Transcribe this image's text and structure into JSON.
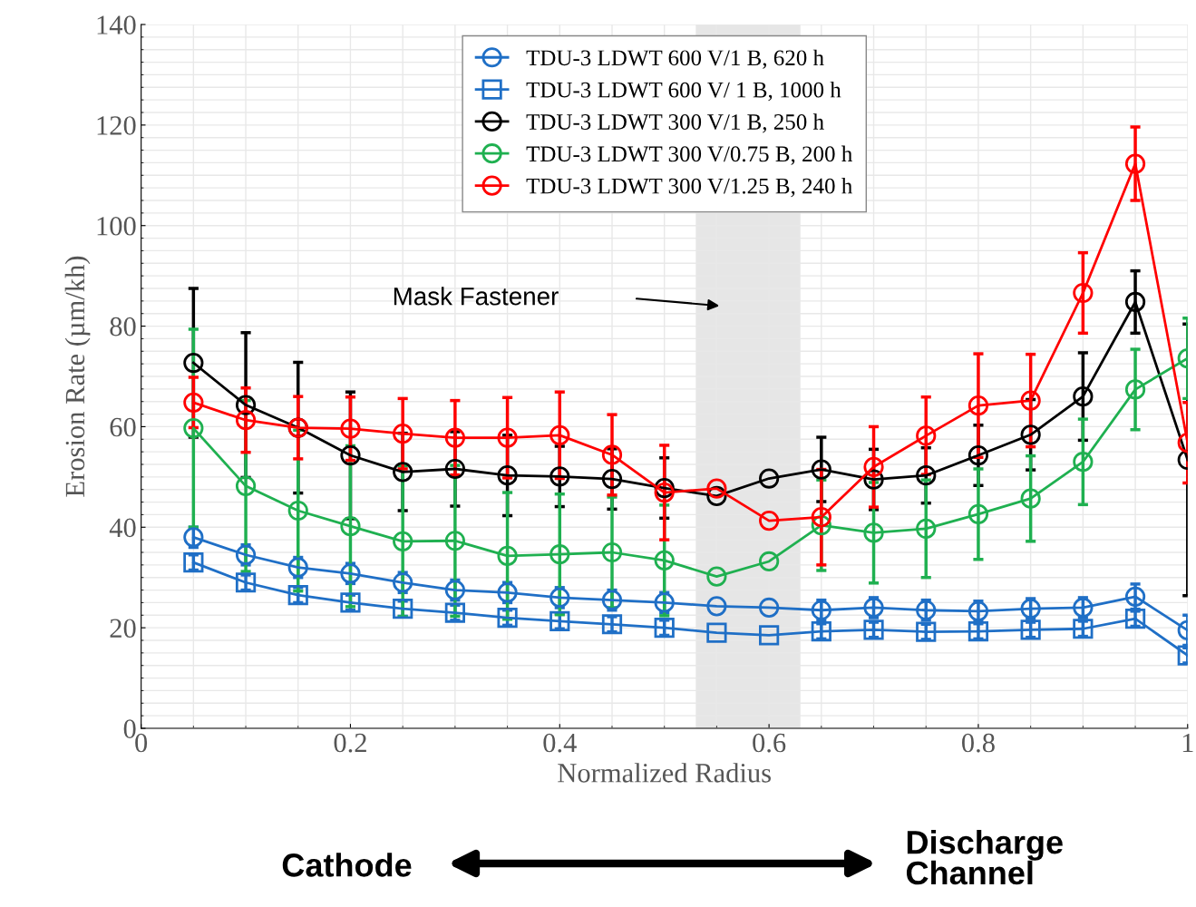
{
  "chart_data": {
    "type": "line",
    "xlabel": "Normalized Radius",
    "ylabel": "Erosion Rate (µm/kh)",
    "x": [
      0.05,
      0.1,
      0.15,
      0.2,
      0.25,
      0.3,
      0.35,
      0.4,
      0.45,
      0.5,
      0.55,
      0.6,
      0.65,
      0.7,
      0.75,
      0.8,
      0.85,
      0.9,
      0.95,
      1.0
    ],
    "series": [
      {
        "name": "TDU-3 LDWT 600 V/1 B, 620 h",
        "color": "#1f6fc6",
        "marker": "circle",
        "values": [
          38,
          34.5,
          32,
          30.8,
          29,
          27.5,
          27,
          26,
          25.5,
          25,
          24.3,
          24,
          23.5,
          24,
          23.5,
          23.3,
          23.8,
          24,
          26.2,
          19.5
        ],
        "errors": [
          2,
          2,
          2,
          2,
          2,
          2,
          2,
          2,
          2,
          2,
          null,
          null,
          2,
          2,
          2,
          2,
          2,
          2,
          2.5,
          3
        ]
      },
      {
        "name": "TDU-3 LDWT 600 V/ 1 B, 1000 h",
        "color": "#1f6fc6",
        "marker": "square",
        "values": [
          33,
          29,
          26.5,
          25,
          23.8,
          23,
          22,
          21.3,
          20.7,
          20,
          19,
          18.5,
          19.3,
          19.6,
          19.2,
          19.3,
          19.6,
          19.8,
          21.8,
          14.5
        ],
        "errors": [
          1.5,
          1.5,
          1.5,
          1.5,
          1.5,
          1.5,
          1.5,
          1.5,
          1.5,
          1.5,
          null,
          null,
          1.5,
          1.5,
          1.5,
          1.5,
          1.5,
          1.5,
          1.5,
          1.5
        ]
      },
      {
        "name": "TDU-3 LDWT 300 V/1 B, 250 h",
        "color": "#000000",
        "marker": "circle",
        "values": [
          72.7,
          64.3,
          59.8,
          54.3,
          51,
          51.6,
          50.3,
          50.1,
          49.6,
          47.8,
          46.2,
          49.7,
          51.5,
          49.5,
          50.3,
          54.3,
          58.4,
          66,
          84.8,
          53.4
        ],
        "errors": [
          14.8,
          14.4,
          13,
          12.6,
          7.7,
          7.4,
          8,
          6,
          6,
          6,
          null,
          null,
          6.4,
          6,
          5.5,
          6,
          7,
          8.7,
          6.2,
          27
        ]
      },
      {
        "name": "TDU-3 LDWT 300 V/0.75 B, 200 h",
        "color": "#1fb050",
        "marker": "circle",
        "values": [
          59.7,
          48.2,
          43.3,
          40.2,
          37.2,
          37.3,
          34.3,
          34.6,
          35,
          33.4,
          30.2,
          33.2,
          40.4,
          38.9,
          39.7,
          42.6,
          45.7,
          53,
          67.4,
          73.6
        ],
        "errors": [
          19.7,
          17,
          16,
          16,
          15,
          15,
          12.6,
          12,
          11,
          11,
          null,
          null,
          9,
          10,
          9.7,
          9,
          8.5,
          8.5,
          8,
          8
        ]
      },
      {
        "name": "TDU-3 LDWT 300 V/1.25 B, 240 h",
        "color": "#ff0000",
        "marker": "circle",
        "values": [
          64.8,
          61.3,
          59.8,
          59.6,
          58.6,
          57.8,
          57.8,
          58.3,
          54.4,
          46.9,
          47.7,
          41.3,
          42,
          52,
          58.2,
          64.2,
          65.2,
          86.6,
          112.3,
          56.8
        ],
        "errors": [
          5,
          6.4,
          6.2,
          6.3,
          7,
          7.4,
          8,
          8.6,
          8,
          9.4,
          null,
          null,
          9.5,
          8,
          7.7,
          10.3,
          9.2,
          8,
          7.3,
          8
        ]
      }
    ],
    "xlim": [
      0,
      1
    ],
    "ylim": [
      0,
      140
    ],
    "xticks": [
      0,
      0.2,
      0.4,
      0.6,
      0.8,
      1
    ],
    "yticks": [
      0,
      20,
      40,
      60,
      80,
      100,
      120,
      140
    ],
    "grid": true,
    "legend": "top",
    "line_style": "solid",
    "bands": [
      {
        "axis": "x",
        "from": 0.53,
        "to": 0.63,
        "color": "#e6e6e6"
      }
    ],
    "annotations": [
      "Mask Fastener",
      "Cathode",
      "Discharge Channel"
    ]
  }
}
